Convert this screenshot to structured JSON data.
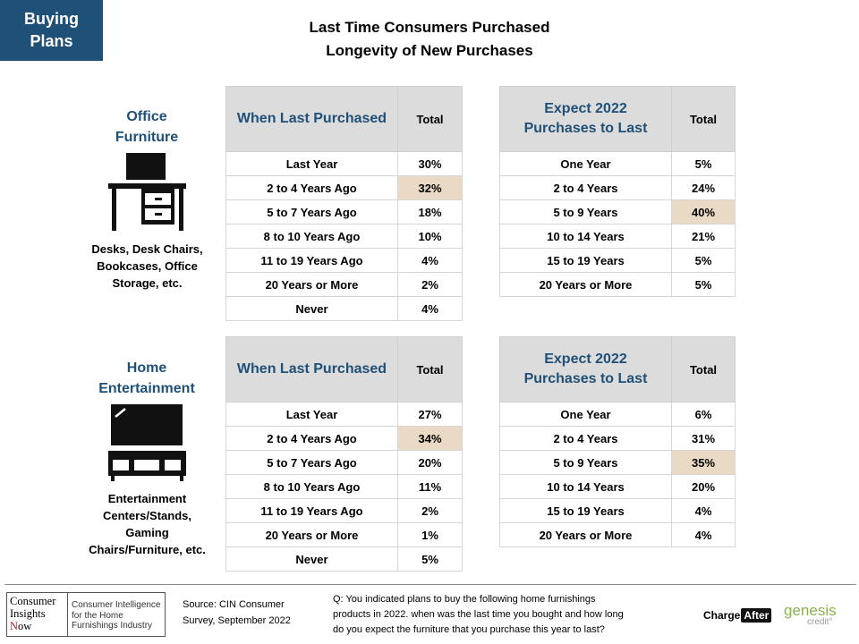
{
  "badge": {
    "line1": "Buying",
    "line2": "Plans"
  },
  "title": {
    "line1": "Last Time Consumers Purchased",
    "line2": "Longevity of New Purchases"
  },
  "sections": [
    {
      "category_line1": "Office",
      "category_line2": "Furniture",
      "icon": "desk-icon",
      "description": [
        "Desks, Desk Chairs,",
        "Bookcases, Office",
        "Storage, etc."
      ],
      "last_purchased": {
        "header": "When Last Purchased",
        "total_label": "Total",
        "rows": [
          {
            "label": "Last Year",
            "value": "30%"
          },
          {
            "label": "2 to 4 Years Ago",
            "value": "32%"
          },
          {
            "label": "5 to 7 Years Ago",
            "value": "18%"
          },
          {
            "label": "8 to 10 Years Ago",
            "value": "10%"
          },
          {
            "label": "11 to 19 Years Ago",
            "value": "4%"
          },
          {
            "label": "20 Years or More",
            "value": "2%"
          },
          {
            "label": "Never",
            "value": "4%"
          }
        ]
      },
      "expect": {
        "header_line1": "Expect 2022",
        "header_line2": "Purchases to Last",
        "total_label": "Total",
        "rows": [
          {
            "label": "One Year",
            "value": "5%"
          },
          {
            "label": "2 to 4 Years",
            "value": "24%"
          },
          {
            "label": "5 to 9 Years",
            "value": "40%"
          },
          {
            "label": "10 to 14 Years",
            "value": "21%"
          },
          {
            "label": "15 to 19 Years",
            "value": "5%"
          },
          {
            "label": "20 Years or More",
            "value": "5%"
          }
        ]
      }
    },
    {
      "category_line1": "Home",
      "category_line2": "Entertainment",
      "icon": "tv-stand-icon",
      "description": [
        "Entertainment",
        "Centers/Stands,",
        "Gaming",
        "Chairs/Furniture, etc."
      ],
      "last_purchased": {
        "header": "When Last Purchased",
        "total_label": "Total",
        "rows": [
          {
            "label": "Last Year",
            "value": "27%"
          },
          {
            "label": "2 to 4 Years Ago",
            "value": "34%"
          },
          {
            "label": "5 to 7 Years Ago",
            "value": "20%"
          },
          {
            "label": "8 to 10 Years Ago",
            "value": "11%"
          },
          {
            "label": "11 to 19 Years Ago",
            "value": "2%"
          },
          {
            "label": "20 Years or More",
            "value": "1%"
          },
          {
            "label": "Never",
            "value": "5%"
          }
        ]
      },
      "expect": {
        "header_line1": "Expect 2022",
        "header_line2": "Purchases to Last",
        "total_label": "Total",
        "rows": [
          {
            "label": "One Year",
            "value": "6%"
          },
          {
            "label": "2 to 4 Years",
            "value": "31%"
          },
          {
            "label": "5 to 9 Years",
            "value": "35%"
          },
          {
            "label": "10 to 14 Years",
            "value": "20%"
          },
          {
            "label": "15 to 19 Years",
            "value": "4%"
          },
          {
            "label": "20 Years or More",
            "value": "4%"
          }
        ]
      }
    }
  ],
  "highlight_color": "#ead9c4",
  "accent_color": "#1f5078",
  "footer": {
    "cin_logo": {
      "line1": "Consumer",
      "line2": "Insights",
      "line3_first": "N",
      "line3_rest": "ow",
      "tag1": "Consumer Intelligence",
      "tag2": "for the Home",
      "tag3": "Furnishings Industry"
    },
    "source_line1": "Source:  CIN Consumer",
    "source_line2": "Survey, September  2022",
    "question_lines": [
      "Q: You  indicated plans to buy the following home furnishings",
      "products in 2022. when was the last time you bought and how long",
      "do you expect the furniture that you purchase this year to last?"
    ],
    "chargeafter_left": "Charge",
    "chargeafter_right": "After",
    "genesis": "genesis",
    "genesis_sub": "credit°"
  }
}
